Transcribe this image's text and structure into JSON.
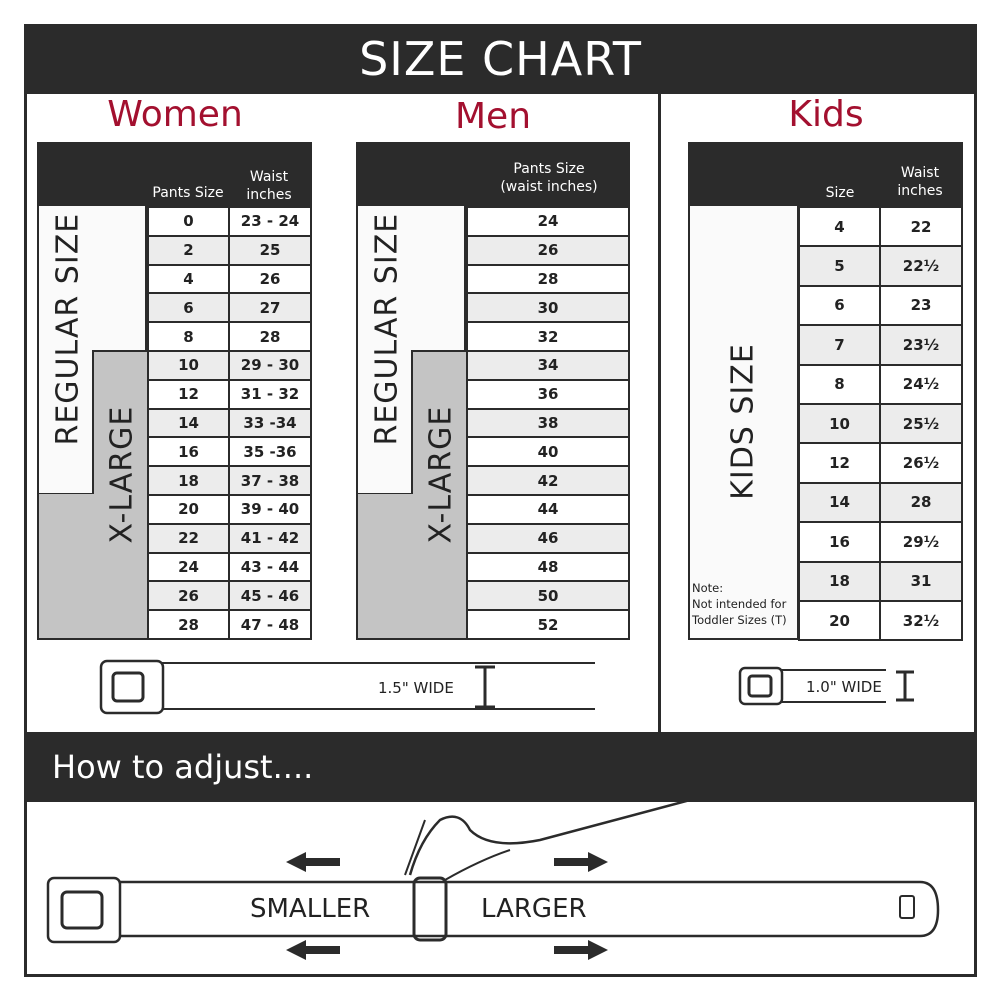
{
  "title": "SIZE CHART",
  "accent": "#a3102f",
  "women": {
    "title": "Women",
    "col1": "Pants Size",
    "col2": "Waist inches",
    "regular_label": "REGULAR SIZE",
    "xl_label": "X-LARGE",
    "rows": [
      [
        "0",
        "23 - 24"
      ],
      [
        "2",
        "25"
      ],
      [
        "4",
        "26"
      ],
      [
        "6",
        "27"
      ],
      [
        "8",
        "28"
      ],
      [
        "10",
        "29 - 30"
      ],
      [
        "12",
        "31 - 32"
      ],
      [
        "14",
        "33 -34"
      ],
      [
        "16",
        "35 -36"
      ],
      [
        "18",
        "37 - 38"
      ],
      [
        "20",
        "39 - 40"
      ],
      [
        "22",
        "41 - 42"
      ],
      [
        "24",
        "43 - 44"
      ],
      [
        "26",
        "45 - 46"
      ],
      [
        "28",
        "47 - 48"
      ]
    ],
    "belt_width": "1.5\" WIDE"
  },
  "men": {
    "title": "Men",
    "col1": "Pants Size (waist inches)",
    "regular_label": "REGULAR SIZE",
    "xl_label": "X-LARGE",
    "rows": [
      "24",
      "26",
      "28",
      "30",
      "32",
      "34",
      "36",
      "38",
      "40",
      "42",
      "44",
      "46",
      "48",
      "50",
      "52"
    ]
  },
  "kids": {
    "title": "Kids",
    "col1": "Size",
    "col2": "Waist inches",
    "label": "KIDS SIZE",
    "note": "Note:",
    "note_text": "Not intended for Toddler Sizes (T)",
    "rows": [
      [
        "4",
        "22"
      ],
      [
        "5",
        "22½"
      ],
      [
        "6",
        "23"
      ],
      [
        "7",
        "23½"
      ],
      [
        "8",
        "24½"
      ],
      [
        "10",
        "25½"
      ],
      [
        "12",
        "26½"
      ],
      [
        "14",
        "28"
      ],
      [
        "16",
        "29½"
      ],
      [
        "18",
        "31"
      ],
      [
        "20",
        "32½"
      ]
    ],
    "belt_width": "1.0\" WIDE"
  },
  "adjust": {
    "title": "How to adjust....",
    "smaller": "SMALLER",
    "larger": "LARGER"
  }
}
